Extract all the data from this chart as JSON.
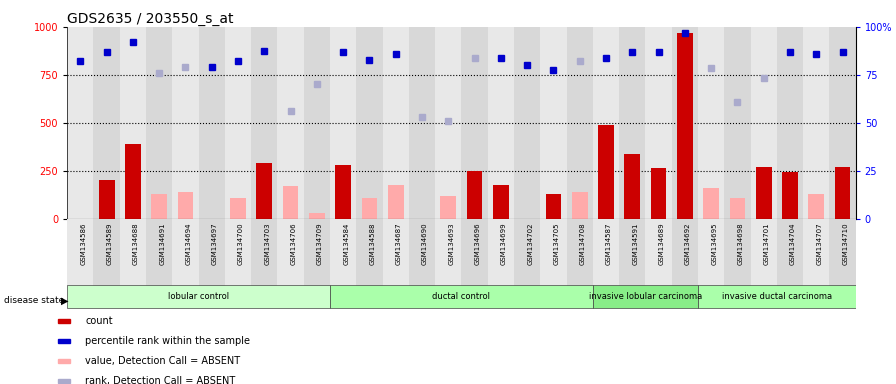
{
  "title": "GDS2635 / 203550_s_at",
  "samples": [
    "GSM134586",
    "GSM134589",
    "GSM134688",
    "GSM134691",
    "GSM134694",
    "GSM134697",
    "GSM134700",
    "GSM134703",
    "GSM134706",
    "GSM134709",
    "GSM134584",
    "GSM134588",
    "GSM134687",
    "GSM134690",
    "GSM134693",
    "GSM134696",
    "GSM134699",
    "GSM134702",
    "GSM134705",
    "GSM134708",
    "GSM134587",
    "GSM134591",
    "GSM134689",
    "GSM134692",
    "GSM134695",
    "GSM134698",
    "GSM134701",
    "GSM134704",
    "GSM134707",
    "GSM134710"
  ],
  "count": [
    0,
    200,
    390,
    0,
    0,
    0,
    0,
    290,
    0,
    0,
    280,
    0,
    0,
    0,
    0,
    250,
    175,
    0,
    130,
    0,
    490,
    340,
    265,
    970,
    0,
    0,
    270,
    245,
    0,
    270
  ],
  "count_absent": [
    0,
    0,
    0,
    130,
    140,
    0,
    110,
    0,
    170,
    30,
    0,
    110,
    175,
    0,
    120,
    0,
    0,
    0,
    0,
    140,
    0,
    0,
    0,
    0,
    160,
    110,
    0,
    0,
    130,
    0
  ],
  "rank": [
    820,
    870,
    920,
    0,
    0,
    790,
    820,
    875,
    0,
    0,
    870,
    830,
    860,
    0,
    0,
    0,
    840,
    800,
    775,
    0,
    840,
    870,
    870,
    970,
    0,
    0,
    0,
    870,
    860,
    870
  ],
  "rank_absent": [
    0,
    0,
    0,
    760,
    790,
    0,
    0,
    0,
    560,
    700,
    0,
    0,
    0,
    530,
    510,
    840,
    0,
    0,
    0,
    820,
    0,
    0,
    0,
    0,
    785,
    610,
    735,
    0,
    0,
    0
  ],
  "groups": [
    {
      "label": "lobular control",
      "start": 0,
      "end": 10,
      "color": "#ccffcc"
    },
    {
      "label": "ductal control",
      "start": 10,
      "end": 20,
      "color": "#aaffaa"
    },
    {
      "label": "invasive lobular carcinoma",
      "start": 20,
      "end": 24,
      "color": "#88ee88"
    },
    {
      "label": "invasive ductal carcinoma",
      "start": 24,
      "end": 30,
      "color": "#aaffaa"
    }
  ],
  "ylim_left": [
    0,
    1000
  ],
  "yticks_left": [
    0,
    250,
    500,
    750,
    1000
  ],
  "bar_color": "#cc0000",
  "bar_absent_color": "#ffaaaa",
  "dot_color": "#0000cc",
  "dot_absent_color": "#aaaacc",
  "col_bg_odd": "#dddddd",
  "col_bg_even": "#cccccc",
  "legend_items": [
    {
      "label": "count",
      "color": "#cc0000"
    },
    {
      "label": "percentile rank within the sample",
      "color": "#0000cc"
    },
    {
      "label": "value, Detection Call = ABSENT",
      "color": "#ffaaaa"
    },
    {
      "label": "rank, Detection Call = ABSENT",
      "color": "#aaaacc"
    }
  ]
}
